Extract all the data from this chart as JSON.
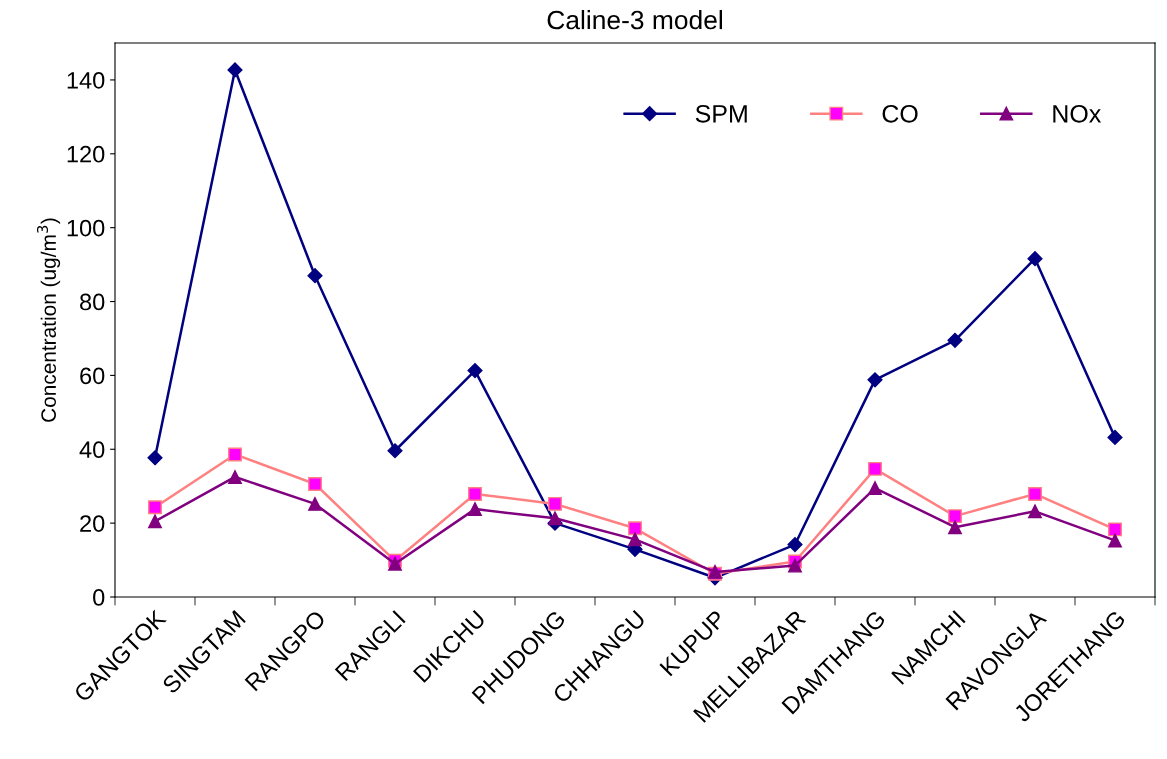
{
  "chart_data": {
    "type": "line",
    "title": "Caline-3 model",
    "ylabel": "Concentration (ug/m$^{3}$)",
    "categories": [
      "GANGTOK",
      "SINGTAM",
      "RANGPO",
      "RANGLI",
      "DIKCHU",
      "PHUDONG",
      "CHHANGU",
      "KUPUP",
      "MELLIBAZAR",
      "DAMTHANG",
      "NAMCHI",
      "RAVONGLA",
      "JORETHANG"
    ],
    "series": [
      {
        "name": "SPM",
        "color": "#000080",
        "marker": "diamond",
        "values": [
          37.7,
          142.7,
          87,
          39.6,
          61.3,
          20,
          12.9,
          5.2,
          14.2,
          58.8,
          69.5,
          91.6,
          43.2
        ]
      },
      {
        "name": "CO",
        "color": "#ff8080",
        "marker": "square",
        "values": [
          24.3,
          38.6,
          30.6,
          9.8,
          27.9,
          25.2,
          18.6,
          6.3,
          9.6,
          34.7,
          21.9,
          27.9,
          18.3
        ]
      },
      {
        "name": "NOx",
        "color": "#800080",
        "marker": "triangle",
        "values": [
          20.5,
          32.5,
          25.2,
          9,
          23.8,
          21.3,
          15.6,
          6.8,
          8.5,
          29.5,
          18.9,
          23.2,
          15.3
        ]
      }
    ],
    "ylim": [
      0,
      150
    ],
    "yticks": [
      0,
      20,
      40,
      60,
      80,
      100,
      120,
      140
    ],
    "grid": false,
    "legend": "top right",
    "line_style": "solid"
  }
}
